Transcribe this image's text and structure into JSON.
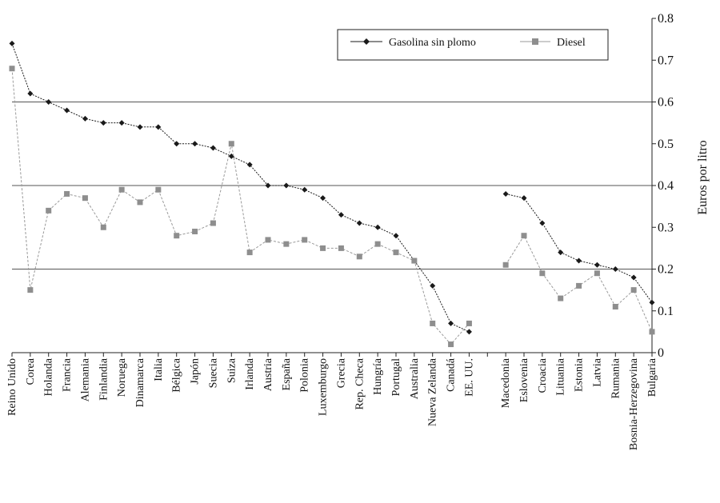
{
  "chart_data": {
    "type": "line",
    "title": "",
    "xlabel": "",
    "ylabel": "Euros por litro",
    "ylim": [
      0,
      0.8
    ],
    "yticks": [
      "0",
      "0.1",
      "0.2",
      "0.3",
      "0.4",
      "0.5",
      "0.6",
      "0.7",
      "0.8"
    ],
    "grid": "horizontal lines at 0.2, 0.4, 0.6",
    "legend_position": "top-right",
    "categories": [
      "Reino Unido",
      "Corea",
      "Holanda",
      "Francia",
      "Alemania",
      "Finlandia",
      "Noruega",
      "Dinamarca",
      "Italia",
      "Bélgica",
      "Japón",
      "Suecia",
      "Suiza",
      "Irlanda",
      "Austria",
      "España",
      "Polonia",
      "Luxemburgo",
      "Grecia",
      "Rep. Checa",
      "Hungría",
      "Portugal",
      "Australia",
      "Nueva Zelanda",
      "Canadá",
      "EE. UU.",
      "",
      "Macedonia",
      "Eslovenia",
      "Croacia",
      "Lituania",
      "Estonia",
      "Latvia",
      "Rumania",
      "Bosnia-Herzegovina",
      "Bulgaria"
    ],
    "series": [
      {
        "name": "Gasolina sin plomo",
        "color": "#1a1a1a",
        "marker": "diamond",
        "values": [
          0.74,
          0.62,
          0.6,
          0.58,
          0.56,
          0.55,
          0.55,
          0.54,
          0.54,
          0.5,
          0.5,
          0.49,
          0.47,
          0.45,
          0.4,
          0.4,
          0.39,
          0.37,
          0.33,
          0.31,
          0.3,
          0.28,
          0.22,
          0.16,
          0.07,
          0.05,
          null,
          0.38,
          0.37,
          0.31,
          0.24,
          0.22,
          0.21,
          0.2,
          0.18,
          0.12
        ]
      },
      {
        "name": "Diesel",
        "color": "#9a9a9a",
        "marker": "square",
        "values": [
          0.68,
          0.15,
          0.34,
          0.38,
          0.37,
          0.3,
          0.39,
          0.36,
          0.39,
          0.28,
          0.29,
          0.31,
          0.5,
          0.24,
          0.27,
          0.26,
          0.27,
          0.25,
          0.25,
          0.23,
          0.26,
          0.24,
          0.22,
          0.07,
          0.02,
          0.07,
          null,
          0.21,
          0.28,
          0.19,
          0.13,
          0.16,
          0.19,
          0.11,
          0.15,
          0.05
        ]
      }
    ]
  }
}
